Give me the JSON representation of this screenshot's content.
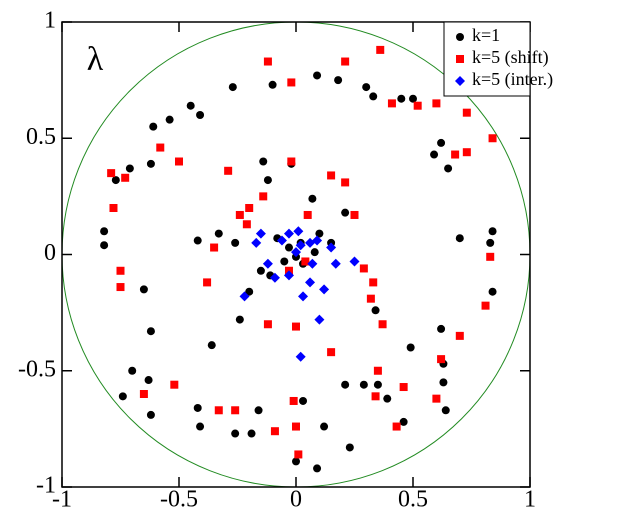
{
  "chart_data": {
    "type": "scatter",
    "annotation": "λ",
    "xlim": [
      -1,
      1
    ],
    "ylim": [
      -1,
      1
    ],
    "xticks": [
      -1,
      -0.5,
      0,
      0.5,
      1
    ],
    "yticks": [
      -1,
      -0.5,
      0,
      0.5,
      1
    ],
    "legend": "upper right",
    "series": [
      {
        "name": "k=1",
        "color": "#000000",
        "marker": "circle",
        "x": [
          -0.27,
          -0.1,
          0.09,
          0.18,
          0.3,
          0.33,
          0.45,
          0.5,
          -0.45,
          -0.41,
          -0.54,
          -0.61,
          -0.71,
          -0.62,
          -0.77,
          -0.14,
          -0.12,
          -0.02,
          0.59,
          0.62,
          0.65,
          -0.82,
          -0.82,
          -0.33,
          -0.42,
          -0.26,
          -0.11,
          -0.15,
          -0.2,
          -0.24,
          -0.36,
          -0.65,
          -0.62,
          -0.7,
          -0.63,
          -0.74,
          -0.62,
          -0.42,
          -0.41,
          -0.16,
          -0.26,
          -0.19,
          0.03,
          0.21,
          0.29,
          0.35,
          0.39,
          0.46,
          0.64,
          0.63,
          0.63,
          0.49,
          0.62,
          0.34,
          0.7,
          0.83,
          0.84,
          0.84,
          0.0,
          0.09,
          0.23,
          0.12,
          0.21,
          0.07,
          0.1,
          -0.03,
          0.0,
          0.02,
          0.03,
          -0.05,
          0.08,
          -0.08,
          0.15
        ],
        "values": [
          0.72,
          0.73,
          0.77,
          0.75,
          0.72,
          0.68,
          0.67,
          0.67,
          0.64,
          0.6,
          0.58,
          0.55,
          0.37,
          0.39,
          0.32,
          0.4,
          0.32,
          0.39,
          0.43,
          0.48,
          0.37,
          0.1,
          0.04,
          0.09,
          0.06,
          0.05,
          -0.09,
          -0.07,
          -0.16,
          -0.28,
          -0.39,
          -0.15,
          -0.33,
          -0.5,
          -0.54,
          -0.61,
          -0.69,
          -0.66,
          -0.74,
          -0.67,
          -0.77,
          -0.77,
          -0.63,
          -0.56,
          -0.56,
          -0.56,
          -0.62,
          -0.72,
          -0.67,
          -0.55,
          -0.47,
          -0.4,
          -0.32,
          -0.24,
          0.07,
          0.05,
          0.1,
          -0.16,
          -0.89,
          -0.92,
          -0.83,
          -0.74,
          0.18,
          0.24,
          0.09,
          0.03,
          -0.01,
          0.05,
          -0.04,
          -0.03,
          0.01,
          0.07,
          0.05
        ]
      },
      {
        "name": "k=5 (shift)",
        "color": "#ff0000",
        "marker": "square",
        "x": [
          -0.02,
          -0.12,
          0.36,
          0.21,
          0.41,
          0.52,
          0.6,
          0.73,
          0.84,
          0.73,
          0.68,
          -0.79,
          -0.73,
          -0.78,
          -0.58,
          -0.5,
          -0.29,
          -0.24,
          -0.2,
          -0.14,
          -0.21,
          -0.02,
          0.15,
          0.21,
          0.25,
          0.05,
          0.29,
          0.33,
          0.32,
          0.37,
          0.7,
          0.81,
          0.83,
          0.62,
          0.46,
          0.6,
          0.34,
          0.43,
          0.15,
          0.0,
          -0.12,
          -0.38,
          -0.35,
          -0.75,
          -0.75,
          -0.52,
          -0.65,
          -0.33,
          -0.26,
          -0.09,
          -0.01,
          0.0,
          0.01,
          0.35,
          0.04,
          -0.03
        ],
        "values": [
          0.74,
          0.83,
          0.88,
          0.83,
          0.65,
          0.64,
          0.65,
          0.61,
          0.5,
          0.44,
          0.43,
          0.35,
          0.33,
          0.2,
          0.46,
          0.4,
          0.36,
          0.17,
          0.2,
          0.25,
          0.13,
          0.4,
          0.34,
          0.31,
          0.17,
          0.17,
          -0.06,
          -0.12,
          -0.19,
          -0.3,
          -0.35,
          -0.22,
          -0.01,
          -0.45,
          -0.57,
          -0.62,
          -0.61,
          -0.74,
          -0.42,
          -0.31,
          -0.3,
          -0.12,
          0.03,
          -0.07,
          -0.14,
          -0.56,
          -0.6,
          -0.67,
          -0.67,
          -0.76,
          -0.63,
          -0.74,
          -0.86,
          -0.5,
          -0.03,
          -0.07
        ]
      },
      {
        "name": "k=5 (inter.)",
        "color": "#0000ff",
        "marker": "diamond",
        "x": [
          -0.15,
          -0.17,
          -0.06,
          -0.03,
          0.01,
          0.06,
          0.09,
          0.15,
          0.25,
          0.17,
          0.12,
          0.03,
          0.06,
          -0.03,
          -0.09,
          0.02,
          0.1,
          -0.22,
          -0.12,
          0.02,
          0.07,
          0.0
        ],
        "values": [
          0.09,
          0.05,
          0.06,
          0.09,
          0.1,
          0.05,
          0.06,
          0.03,
          -0.03,
          -0.04,
          -0.15,
          -0.18,
          -0.12,
          -0.09,
          -0.1,
          -0.44,
          -0.28,
          -0.18,
          -0.04,
          0.04,
          -0.04,
          0.01
        ]
      }
    ]
  }
}
